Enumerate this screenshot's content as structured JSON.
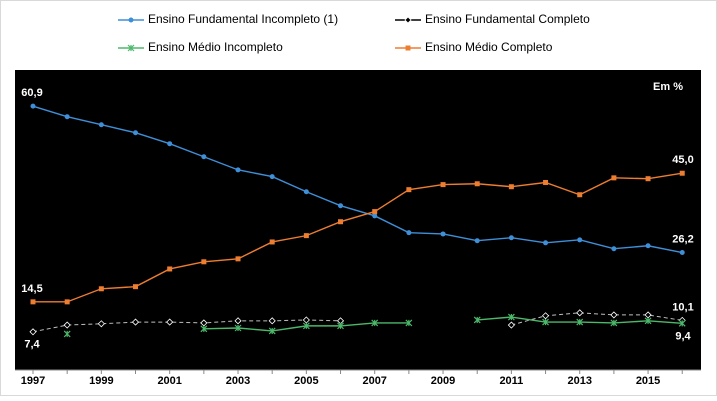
{
  "chart_data": {
    "type": "line",
    "annotation": "Em %",
    "categories": [
      "1997",
      null,
      "1999",
      null,
      "2001",
      null,
      "2003",
      null,
      "2005",
      null,
      "2007",
      null,
      "2009",
      null,
      "2011",
      null,
      "2013",
      null,
      "2015",
      null
    ],
    "ylim": [
      0,
      69
    ],
    "series": [
      {
        "name": "Ensino Fundamental Incompleto (1)",
        "color": "#3f8fd8",
        "values": [
          60.9,
          58.4,
          56.5,
          54.6,
          52.0,
          48.9,
          45.8,
          44.2,
          40.6,
          37.3,
          34.9,
          30.9,
          30.6,
          29.0,
          29.7,
          28.5,
          29.2,
          27.1,
          27.8,
          26.2
        ],
        "value_labels": [
          "60,9",
          null,
          null,
          null,
          null,
          null,
          null,
          null,
          null,
          null,
          null,
          null,
          null,
          null,
          null,
          null,
          null,
          null,
          null,
          "26,2"
        ]
      },
      {
        "name": "Ensino Fundamental Completo",
        "color": "#000000",
        "values": [
          7.4,
          9.0,
          9.3,
          9.7,
          9.7,
          9.5,
          10.0,
          10.0,
          10.2,
          10.0,
          null,
          null,
          null,
          null,
          9.0,
          11.2,
          11.9,
          11.4,
          11.4,
          10.1
        ],
        "value_labels": [
          "7,4",
          null,
          null,
          null,
          null,
          null,
          null,
          null,
          null,
          null,
          null,
          null,
          null,
          null,
          null,
          null,
          null,
          null,
          null,
          "10,1"
        ]
      },
      {
        "name": "Ensino Médio Incompleto",
        "color": "#4cb86a",
        "values": [
          null,
          6.9,
          null,
          null,
          null,
          8.1,
          8.3,
          7.6,
          8.8,
          8.8,
          9.5,
          9.5,
          null,
          10.2,
          10.9,
          9.7,
          9.7,
          9.5,
          10.0,
          9.4
        ],
        "value_labels": [
          null,
          null,
          null,
          null,
          null,
          null,
          null,
          null,
          null,
          null,
          null,
          null,
          null,
          null,
          null,
          null,
          null,
          null,
          null,
          "9,4"
        ]
      },
      {
        "name": "Ensino Médio Completo",
        "color": "#ed7d31",
        "values": [
          14.5,
          14.5,
          17.6,
          18.1,
          22.3,
          24.0,
          24.7,
          28.7,
          30.2,
          33.5,
          35.9,
          41.1,
          42.3,
          42.5,
          41.8,
          42.8,
          39.9,
          43.9,
          43.7,
          45.0
        ],
        "value_labels": [
          "14,5",
          null,
          null,
          null,
          null,
          null,
          null,
          null,
          null,
          null,
          null,
          null,
          null,
          null,
          null,
          null,
          null,
          null,
          null,
          "45,0"
        ]
      }
    ]
  }
}
